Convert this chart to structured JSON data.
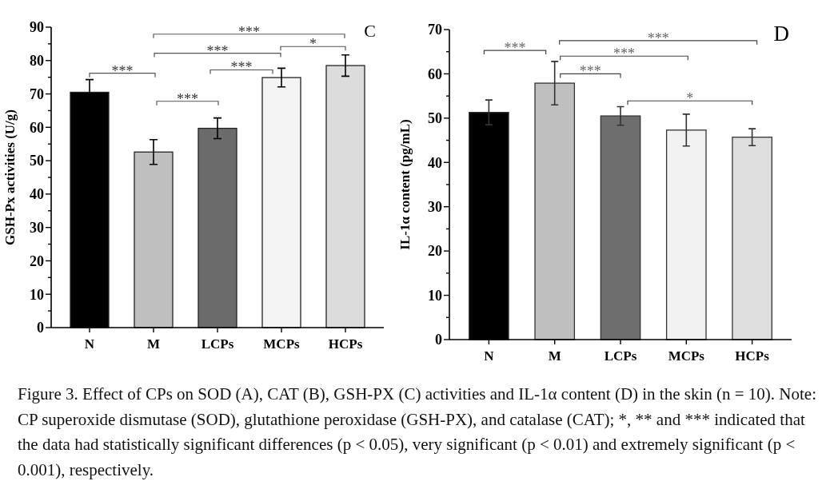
{
  "chart_data": [
    {
      "type": "bar",
      "title": "C",
      "categories": [
        "N",
        "M",
        "LCPs",
        "MCPs",
        "HCPs"
      ],
      "values": [
        70.5,
        52.6,
        59.7,
        74.9,
        78.5
      ],
      "errors": [
        3.8,
        3.7,
        3.1,
        2.8,
        3.2
      ],
      "colors": [
        "#000000",
        "#bfbfbf",
        "#6b6b6b",
        "#f4f4f4",
        "#dcdcdc"
      ],
      "ylabel": "GSH-Px activities (U/g)",
      "ylim": [
        0,
        90
      ],
      "yticks": [
        0,
        {
          "value": 5,
          "label": null
        },
        10,
        {
          "value": 15,
          "label": null
        },
        20,
        {
          "value": 25,
          "label": null
        },
        30,
        {
          "value": 35,
          "label": null
        },
        40,
        {
          "value": 45,
          "label": null
        },
        50,
        {
          "value": 55,
          "label": null
        },
        60,
        {
          "value": 65,
          "label": null
        },
        70,
        {
          "value": 75,
          "label": null
        },
        80,
        {
          "value": 85,
          "label": null
        },
        90
      ],
      "annotations": [
        "***",
        "***",
        "*",
        "***",
        "***",
        "***"
      ]
    },
    {
      "type": "bar",
      "title": "D",
      "categories": [
        "N",
        "M",
        "LCPs",
        "MCPs",
        "HCPs"
      ],
      "values": [
        51.3,
        57.9,
        50.5,
        47.3,
        45.7
      ],
      "errors": [
        2.8,
        4.9,
        2.1,
        3.6,
        1.9
      ],
      "colors": [
        "#000000",
        "#bfbfbf",
        "#6e6e6e",
        "#f2f2f2",
        "#dedede"
      ],
      "ylabel": "IL-1α content (pg/mL)",
      "ylim": [
        0,
        70
      ],
      "yticks": [
        0,
        {
          "value": 5,
          "label": null
        },
        10,
        {
          "value": 15,
          "label": null
        },
        20,
        {
          "value": 25,
          "label": null
        },
        30,
        {
          "value": 35,
          "label": null
        },
        40,
        {
          "value": 45,
          "label": null
        },
        50,
        {
          "value": 55,
          "label": null
        },
        60,
        {
          "value": 65,
          "label": null
        },
        70
      ],
      "annotations": [
        "***",
        "***",
        "***",
        "***",
        "*"
      ]
    },
    {
      "type": "other",
      "annotations": [
        "Figure 3. Effect of CPs on SOD (A), CAT (B), GSH-PX (C) activities and IL-1α content (D) in the skin (n = 10). Note: CP superoxide dismutase (SOD), glutathione peroxidase (GSH-PX), and catalase (CAT); *, ** and *** indicated that the data had statistically significant differences (p < 0.05), very significant (p < 0.01) and extremely significant (p < 0.001), respectively."
      ]
    }
  ]
}
